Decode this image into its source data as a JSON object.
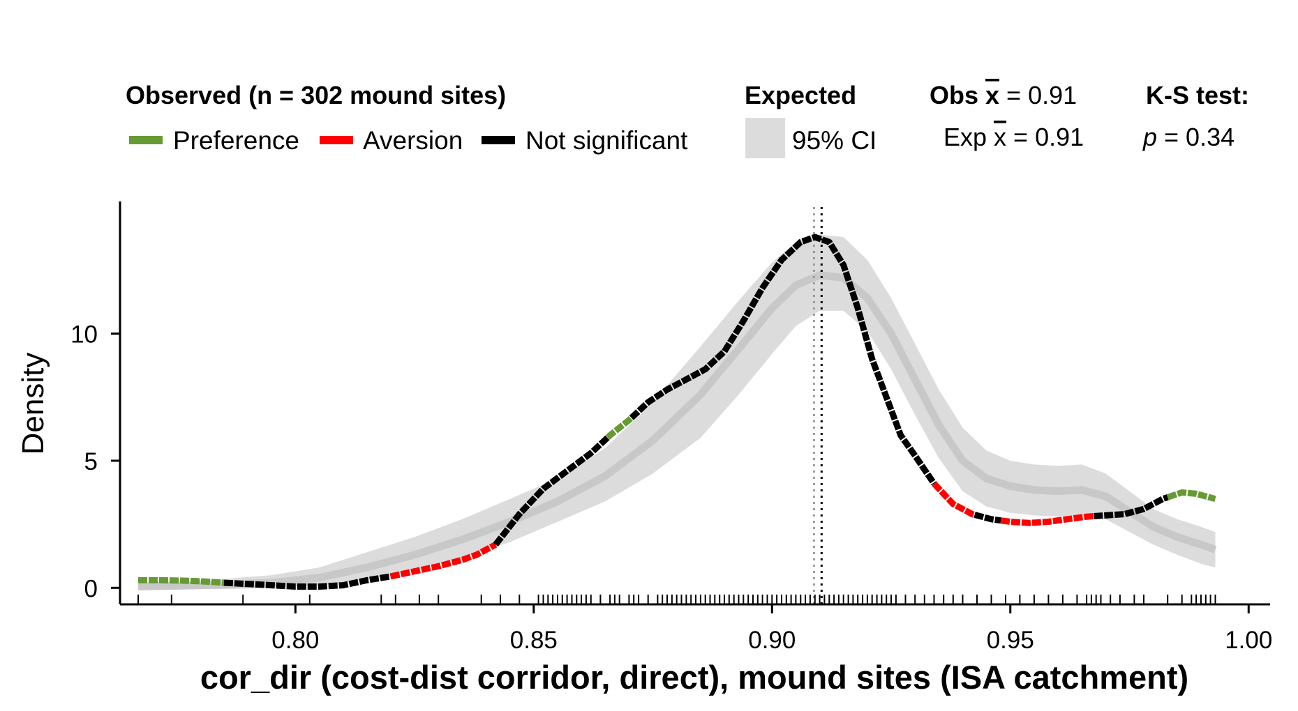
{
  "legend": {
    "observed_title": "Observed (n = 302 mound sites)",
    "expected_title": "Expected",
    "ci_label": "95% CI",
    "entries": [
      {
        "label": "Preference",
        "color": "#679a34"
      },
      {
        "label": "Aversion",
        "color": "#ff0000"
      },
      {
        "label": "Not significant",
        "color": "#000000"
      }
    ],
    "stats": {
      "obs_prefix": "Obs ",
      "obs_symbol": "x",
      "obs_value": " = 0.91",
      "exp_prefix": "Exp ",
      "exp_symbol": "x",
      "exp_value": " = 0.91",
      "ks_title": "K-S test:",
      "p_symbol": "p",
      "p_value": " = 0.34"
    }
  },
  "chart_data": {
    "type": "line",
    "xlabel": "cor_dir (cost-dist corridor, direct), mound sites (ISA catchment)",
    "ylabel": "Density",
    "xlim": [
      0.7632,
      1.0045
    ],
    "ylim": [
      -0.65,
      15.2
    ],
    "xticks": [
      0.8,
      0.85,
      0.9,
      0.95,
      1.0
    ],
    "xtick_labels": [
      "0.80",
      "0.85",
      "0.90",
      "0.95",
      "1.00"
    ],
    "yticks": [
      0,
      5,
      10
    ],
    "ytick_labels": [
      "0",
      "5",
      "10"
    ],
    "colors": {
      "preference": "#679a34",
      "aversion": "#ff0000",
      "not_significant": "#000000",
      "ci_band": "#dcdcdc",
      "expected_mean": "#c8c8c8"
    },
    "observed_mean": 0.9104,
    "expected_mean_x": 0.9088,
    "observed_density": {
      "x": [
        0.767,
        0.772,
        0.777,
        0.781,
        0.785,
        0.79,
        0.795,
        0.8,
        0.805,
        0.81,
        0.815,
        0.82,
        0.825,
        0.83,
        0.835,
        0.838,
        0.842,
        0.847,
        0.852,
        0.857,
        0.862,
        0.866,
        0.87,
        0.874,
        0.878,
        0.882,
        0.886,
        0.89,
        0.894,
        0.898,
        0.902,
        0.906,
        0.909,
        0.912,
        0.915,
        0.918,
        0.921,
        0.924,
        0.927,
        0.93,
        0.934,
        0.938,
        0.942,
        0.946,
        0.95,
        0.954,
        0.958,
        0.962,
        0.966,
        0.97,
        0.974,
        0.978,
        0.982,
        0.986,
        0.989,
        0.993
      ],
      "y": [
        0.3,
        0.3,
        0.28,
        0.25,
        0.2,
        0.15,
        0.1,
        0.05,
        0.05,
        0.1,
        0.3,
        0.45,
        0.65,
        0.85,
        1.1,
        1.3,
        1.7,
        2.9,
        3.9,
        4.6,
        5.3,
        6.0,
        6.6,
        7.3,
        7.8,
        8.2,
        8.6,
        9.3,
        10.5,
        11.8,
        12.9,
        13.6,
        13.8,
        13.6,
        12.7,
        11.0,
        9.0,
        7.5,
        6.0,
        5.2,
        4.1,
        3.3,
        2.9,
        2.7,
        2.6,
        2.55,
        2.6,
        2.7,
        2.8,
        2.85,
        2.9,
        3.1,
        3.5,
        3.75,
        3.7,
        3.5
      ],
      "segments": [
        {
          "from": 0.767,
          "to": 0.785,
          "class": "Preference"
        },
        {
          "from": 0.785,
          "to": 0.82,
          "class": "Not significant"
        },
        {
          "from": 0.82,
          "to": 0.842,
          "class": "Aversion"
        },
        {
          "from": 0.842,
          "to": 0.8655,
          "class": "Not significant"
        },
        {
          "from": 0.8655,
          "to": 0.8705,
          "class": "Preference"
        },
        {
          "from": 0.8705,
          "to": 0.934,
          "class": "Not significant"
        },
        {
          "from": 0.934,
          "to": 0.9425,
          "class": "Aversion"
        },
        {
          "from": 0.9425,
          "to": 0.948,
          "class": "Not significant"
        },
        {
          "from": 0.948,
          "to": 0.9675,
          "class": "Aversion"
        },
        {
          "from": 0.9675,
          "to": 0.983,
          "class": "Not significant"
        },
        {
          "from": 0.983,
          "to": 0.993,
          "class": "Preference"
        }
      ]
    },
    "expected_band": {
      "x": [
        0.767,
        0.775,
        0.785,
        0.795,
        0.805,
        0.815,
        0.825,
        0.835,
        0.845,
        0.855,
        0.865,
        0.875,
        0.885,
        0.893,
        0.9,
        0.905,
        0.91,
        0.915,
        0.92,
        0.925,
        0.93,
        0.935,
        0.94,
        0.945,
        0.95,
        0.955,
        0.96,
        0.965,
        0.97,
        0.975,
        0.98,
        0.985,
        0.99,
        0.993
      ],
      "mean": [
        0.05,
        0.08,
        0.12,
        0.2,
        0.4,
        0.8,
        1.3,
        1.9,
        2.6,
        3.4,
        4.4,
        5.8,
        7.6,
        9.4,
        11.0,
        11.9,
        12.3,
        12.2,
        11.4,
        10.0,
        8.2,
        6.4,
        5.0,
        4.3,
        4.0,
        3.85,
        3.8,
        3.85,
        3.6,
        3.0,
        2.4,
        2.0,
        1.7,
        1.5
      ],
      "lower": [
        -0.05,
        -0.05,
        -0.05,
        0.0,
        0.1,
        0.3,
        0.7,
        1.2,
        1.8,
        2.6,
        3.4,
        4.5,
        5.9,
        7.6,
        9.2,
        10.3,
        10.9,
        10.9,
        10.1,
        8.6,
        6.8,
        5.1,
        3.8,
        3.2,
        2.95,
        2.85,
        2.8,
        2.85,
        2.7,
        2.2,
        1.7,
        1.3,
        0.95,
        0.8
      ],
      "upper": [
        0.2,
        0.25,
        0.35,
        0.5,
        0.8,
        1.4,
        2.0,
        2.7,
        3.5,
        4.3,
        5.5,
        7.3,
        9.5,
        11.3,
        12.8,
        13.6,
        13.9,
        13.8,
        12.9,
        11.4,
        9.6,
        7.8,
        6.3,
        5.4,
        5.0,
        4.85,
        4.8,
        4.85,
        4.5,
        3.8,
        3.1,
        2.7,
        2.4,
        2.2
      ]
    },
    "rug": [
      0.767,
      0.774,
      0.789,
      0.803,
      0.818,
      0.821,
      0.826,
      0.83,
      0.839,
      0.843,
      0.847,
      0.851,
      0.852,
      0.853,
      0.854,
      0.855,
      0.856,
      0.857,
      0.858,
      0.859,
      0.86,
      0.861,
      0.862,
      0.864,
      0.866,
      0.867,
      0.868,
      0.87,
      0.871,
      0.872,
      0.874,
      0.876,
      0.877,
      0.878,
      0.879,
      0.88,
      0.881,
      0.882,
      0.883,
      0.884,
      0.885,
      0.886,
      0.887,
      0.888,
      0.889,
      0.89,
      0.891,
      0.892,
      0.893,
      0.894,
      0.895,
      0.896,
      0.897,
      0.898,
      0.899,
      0.9,
      0.901,
      0.902,
      0.903,
      0.904,
      0.905,
      0.906,
      0.907,
      0.908,
      0.909,
      0.91,
      0.911,
      0.912,
      0.913,
      0.914,
      0.915,
      0.916,
      0.917,
      0.918,
      0.919,
      0.92,
      0.921,
      0.922,
      0.923,
      0.924,
      0.925,
      0.926,
      0.928,
      0.93,
      0.932,
      0.934,
      0.936,
      0.938,
      0.94,
      0.943,
      0.946,
      0.949,
      0.952,
      0.955,
      0.958,
      0.961,
      0.964,
      0.966,
      0.967,
      0.968,
      0.969,
      0.971,
      0.973,
      0.976,
      0.978,
      0.983,
      0.986,
      0.988,
      0.989,
      0.99,
      0.991,
      0.992,
      0.993
    ]
  }
}
